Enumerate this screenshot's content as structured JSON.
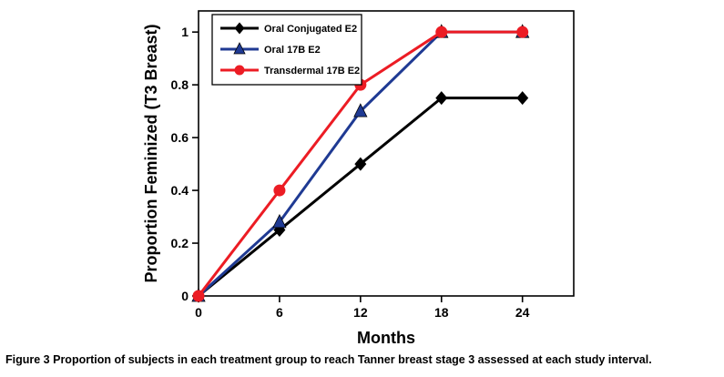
{
  "figure": {
    "caption_label": "Figure 3",
    "caption_text": "Proportion of subjects in each treatment group to reach Tanner breast stage 3 assessed at each study interval."
  },
  "chart_data": {
    "type": "line",
    "x": [
      0,
      6,
      12,
      18,
      24
    ],
    "xlabel": "Months",
    "ylabel": "Proportion Feminized (T3 Breast)",
    "xlim": [
      0,
      27.8
    ],
    "ylim": [
      0,
      1.08
    ],
    "xticks": {
      "values": [
        0,
        6,
        12,
        18,
        24
      ],
      "labels": [
        "0",
        "6",
        "12",
        "18",
        "24"
      ]
    },
    "yticks": {
      "values": [
        0,
        0.2,
        0.4,
        0.6,
        0.8,
        1
      ],
      "labels": [
        "0",
        "0.2",
        "0.4",
        "0.6",
        "0.8",
        "1"
      ]
    },
    "grid": false,
    "legend_position": "top-left-inside",
    "frame": true,
    "series": [
      {
        "name": "Oral Conjugated E2",
        "color": "#000000",
        "marker": "diamond",
        "values": [
          0,
          0.25,
          0.5,
          0.75,
          0.75
        ]
      },
      {
        "name": "Oral 17B E2",
        "color": "#1F3A93",
        "marker": "triangle",
        "values": [
          0,
          0.28,
          0.7,
          1,
          1
        ]
      },
      {
        "name": "Transdermal 17B E2",
        "color": "#EC1C24",
        "marker": "circle",
        "values": [
          0,
          0.4,
          0.8,
          1,
          1
        ]
      }
    ]
  }
}
